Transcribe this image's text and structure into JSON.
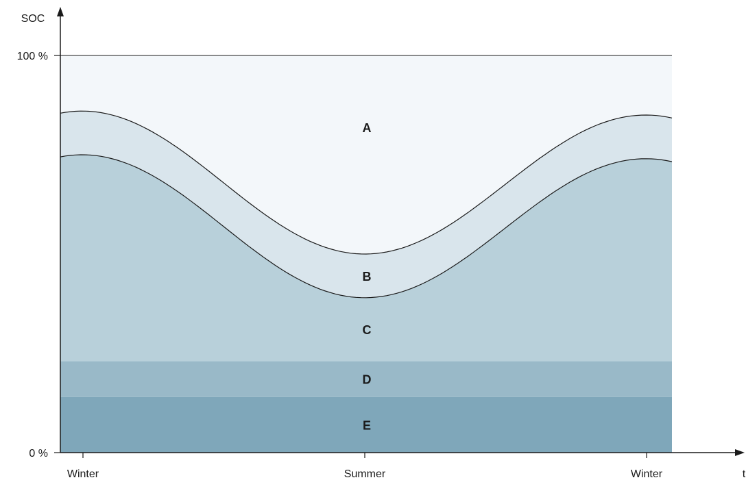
{
  "chart_data": {
    "type": "area",
    "ylabel": "SOC",
    "xlabel": "t",
    "y_ticks": [
      "100 %",
      "0 %"
    ],
    "ylim": [
      0,
      100
    ],
    "x_ticks": [
      "Winter",
      "Summer",
      "Winter"
    ],
    "regions": [
      {
        "label": "A",
        "lower": "upper-curve",
        "upper": 100,
        "color": "#f3f7fa"
      },
      {
        "label": "B",
        "lower": "lower-curve",
        "upper": "upper-curve",
        "color": "#d9e5ec"
      },
      {
        "label": "C",
        "lower": 23,
        "upper": "lower-curve",
        "color": "#b8d0da"
      },
      {
        "label": "D",
        "lower": 14,
        "upper": 23,
        "color": "#99b9c8"
      },
      {
        "label": "E",
        "lower": 0,
        "upper": 14,
        "color": "#7fa7ba"
      }
    ],
    "curves": {
      "x": [
        0,
        0.5,
        1
      ],
      "upper_curve": [
        86,
        50,
        85
      ],
      "lower_curve": [
        75,
        39,
        74
      ]
    },
    "grid": false
  }
}
